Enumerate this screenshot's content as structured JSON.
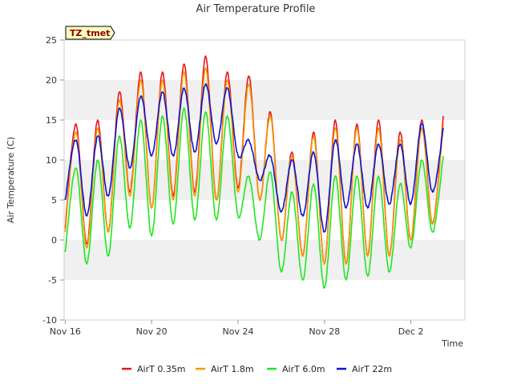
{
  "chart_data": {
    "type": "line",
    "title": "Air Temperature Profile",
    "xlabel": "Time",
    "ylabel": "Air Temperature (C)",
    "badge": "TZ_tmet",
    "ylim": [
      -10,
      25
    ],
    "xlim": [
      "Nov 16",
      "Dec 4"
    ],
    "x_ticks": [
      "Nov 16",
      "Nov 20",
      "Nov 24",
      "Nov 28",
      "Dec 2"
    ],
    "y_ticks": [
      "-10",
      "-5",
      "0",
      "5",
      "10",
      "15",
      "20",
      "25"
    ],
    "grid": "horizontal alternating bands",
    "legend_position": "bottom",
    "x": [
      "Nov 16 00:00",
      "Nov 16 12:00",
      "Nov 17 00:00",
      "Nov 17 12:00",
      "Nov 18 00:00",
      "Nov 18 12:00",
      "Nov 19 00:00",
      "Nov 19 12:00",
      "Nov 20 00:00",
      "Nov 20 12:00",
      "Nov 21 00:00",
      "Nov 21 12:00",
      "Nov 22 00:00",
      "Nov 22 12:00",
      "Nov 23 00:00",
      "Nov 23 12:00",
      "Nov 24 00:00",
      "Nov 24 12:00",
      "Nov 25 00:00",
      "Nov 25 12:00",
      "Nov 26 00:00",
      "Nov 26 12:00",
      "Nov 27 00:00",
      "Nov 27 12:00",
      "Nov 28 00:00",
      "Nov 28 12:00",
      "Nov 29 00:00",
      "Nov 29 12:00",
      "Nov 30 00:00",
      "Nov 30 12:00",
      "Dec 1 00:00",
      "Dec 1 12:00",
      "Dec 2 00:00",
      "Dec 2 12:00",
      "Dec 3 00:00",
      "Dec 3 12:00"
    ],
    "series": [
      {
        "name": "AirT 0.35m",
        "color": "#e8141c",
        "values": [
          1.5,
          14.5,
          -0.5,
          15.0,
          1.0,
          18.5,
          6.0,
          21.0,
          4.0,
          21.0,
          5.5,
          22.0,
          6.0,
          23.0,
          5.0,
          21.0,
          6.5,
          20.5,
          5.0,
          16.0,
          0.0,
          11.0,
          -2.0,
          13.5,
          -3.0,
          15.0,
          -3.0,
          14.5,
          -2.0,
          15.0,
          -2.0,
          13.5,
          0.0,
          15.0,
          2.0,
          15.5
        ]
      },
      {
        "name": "AirT 1.8m",
        "color": "#f59a00",
        "values": [
          1.0,
          13.5,
          -1.0,
          14.0,
          1.0,
          17.5,
          5.5,
          20.0,
          4.0,
          20.0,
          5.0,
          21.0,
          5.5,
          21.5,
          5.0,
          20.0,
          6.0,
          19.5,
          5.0,
          15.5,
          0.0,
          10.5,
          -2.0,
          13.0,
          -3.0,
          14.0,
          -3.0,
          14.0,
          -2.0,
          14.0,
          -2.0,
          12.5,
          0.0,
          14.0,
          2.0,
          14.5
        ]
      },
      {
        "name": "AirT 6.0m",
        "color": "#22e622",
        "values": [
          -1.5,
          9.0,
          -3.0,
          10.0,
          -2.0,
          13.0,
          1.5,
          15.0,
          0.5,
          15.5,
          2.0,
          16.5,
          2.5,
          16.0,
          2.5,
          15.5,
          3.0,
          8.0,
          0.0,
          8.5,
          -4.0,
          6.0,
          -5.0,
          7.0,
          -6.0,
          8.0,
          -5.0,
          8.0,
          -4.5,
          8.0,
          -4.0,
          7.0,
          -1.0,
          10.0,
          1.0,
          10.5
        ]
      },
      {
        "name": "AirT 22m",
        "color": "#0a14d2",
        "values": [
          5.0,
          12.5,
          3.0,
          13.0,
          5.5,
          16.5,
          9.0,
          18.0,
          10.5,
          18.5,
          10.5,
          19.0,
          11.0,
          19.5,
          12.0,
          19.0,
          10.5,
          12.5,
          7.5,
          10.5,
          3.5,
          10.0,
          3.0,
          11.0,
          1.0,
          12.5,
          4.0,
          12.0,
          4.0,
          12.0,
          4.5,
          12.0,
          4.5,
          14.5,
          6.0,
          14.0
        ]
      }
    ]
  }
}
